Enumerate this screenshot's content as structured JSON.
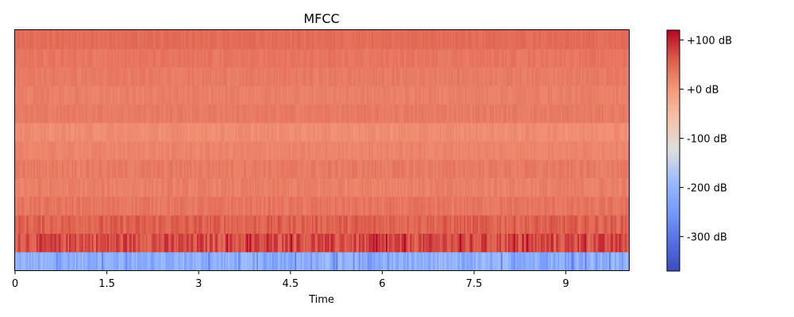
{
  "chart_data": {
    "type": "heatmap",
    "title": "MFCC",
    "xlabel": "Time",
    "ylabel": "",
    "xlim": [
      0,
      10.03
    ],
    "x_ticks": [
      0,
      1.5,
      3,
      4.5,
      6,
      7.5,
      9
    ],
    "x_tick_labels": [
      "0",
      "1.5",
      "3",
      "4.5",
      "6",
      "7.5",
      "9"
    ],
    "rows": 13,
    "frames": 432,
    "y_axis_ticks": "none",
    "colormap": "coolwarm",
    "color_range_db": [
      -370,
      120
    ],
    "colorbar": {
      "ticks": [
        100,
        0,
        -100,
        -200,
        -300
      ],
      "tick_labels": [
        "+100 dB",
        "+0 dB",
        "-100 dB",
        "-200 dB",
        "-300 dB"
      ]
    },
    "row_mean_db_bottom_to_top": [
      -210,
      70,
      55,
      35,
      25,
      30,
      20,
      12,
      30,
      25,
      30,
      35,
      45
    ],
    "row_variation_db_bottom_to_top": [
      35,
      28,
      18,
      12,
      10,
      10,
      8,
      8,
      8,
      8,
      8,
      8,
      8
    ],
    "colors": {
      "cool_end": "#3b4cc0",
      "neutral": "#dddddd",
      "warm_end": "#b40426"
    }
  }
}
